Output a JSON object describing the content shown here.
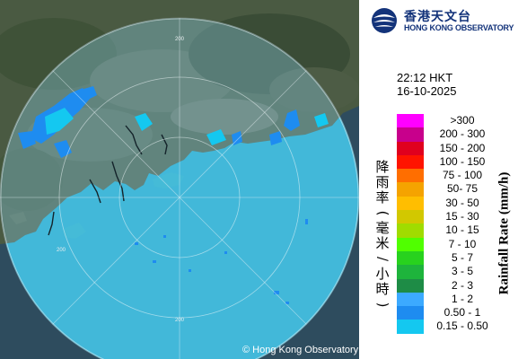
{
  "map": {
    "copyright": "© Hong Kong Observatory",
    "range_label": "200"
  },
  "logo": {
    "name_cn": "香港天文台",
    "name_en": "HONG KONG OBSERVATORY",
    "emblem_icon": "hko-emblem-icon"
  },
  "time": "22:12 HKT",
  "date": "16-10-2025",
  "legend": {
    "title_cn": [
      "降",
      "雨",
      "率",
      "(",
      "毫",
      "米",
      "/",
      "小",
      "時",
      ")"
    ],
    "title_en": "Rainfall Rate (mm/h)",
    "items": [
      {
        "label": ">300",
        "color": "#ff00ff"
      },
      {
        "label": "200 - 300",
        "color": "#c8008c"
      },
      {
        "label": "150 - 200",
        "color": "#e0001e"
      },
      {
        "label": "100 - 150",
        "color": "#ff1400"
      },
      {
        "label": "75 - 100",
        "color": "#ff6e00"
      },
      {
        "label": "50- 75",
        "color": "#f5a300"
      },
      {
        "label": "30 - 50",
        "color": "#ffbe00"
      },
      {
        "label": "15 - 30",
        "color": "#d2c800"
      },
      {
        "label": "10 - 15",
        "color": "#a0dc00"
      },
      {
        "label": "7 - 10",
        "color": "#50ff00"
      },
      {
        "label": "5 - 7",
        "color": "#28d21e"
      },
      {
        "label": "3 - 5",
        "color": "#1eb43c"
      },
      {
        "label": "2 - 3",
        "color": "#1e8c46"
      },
      {
        "label": "1 - 2",
        "color": "#3caaff"
      },
      {
        "label": "0.50 - 1",
        "color": "#1e8cf0"
      },
      {
        "label": "0.15 - 0.50",
        "color": "#14c8f0"
      }
    ]
  }
}
